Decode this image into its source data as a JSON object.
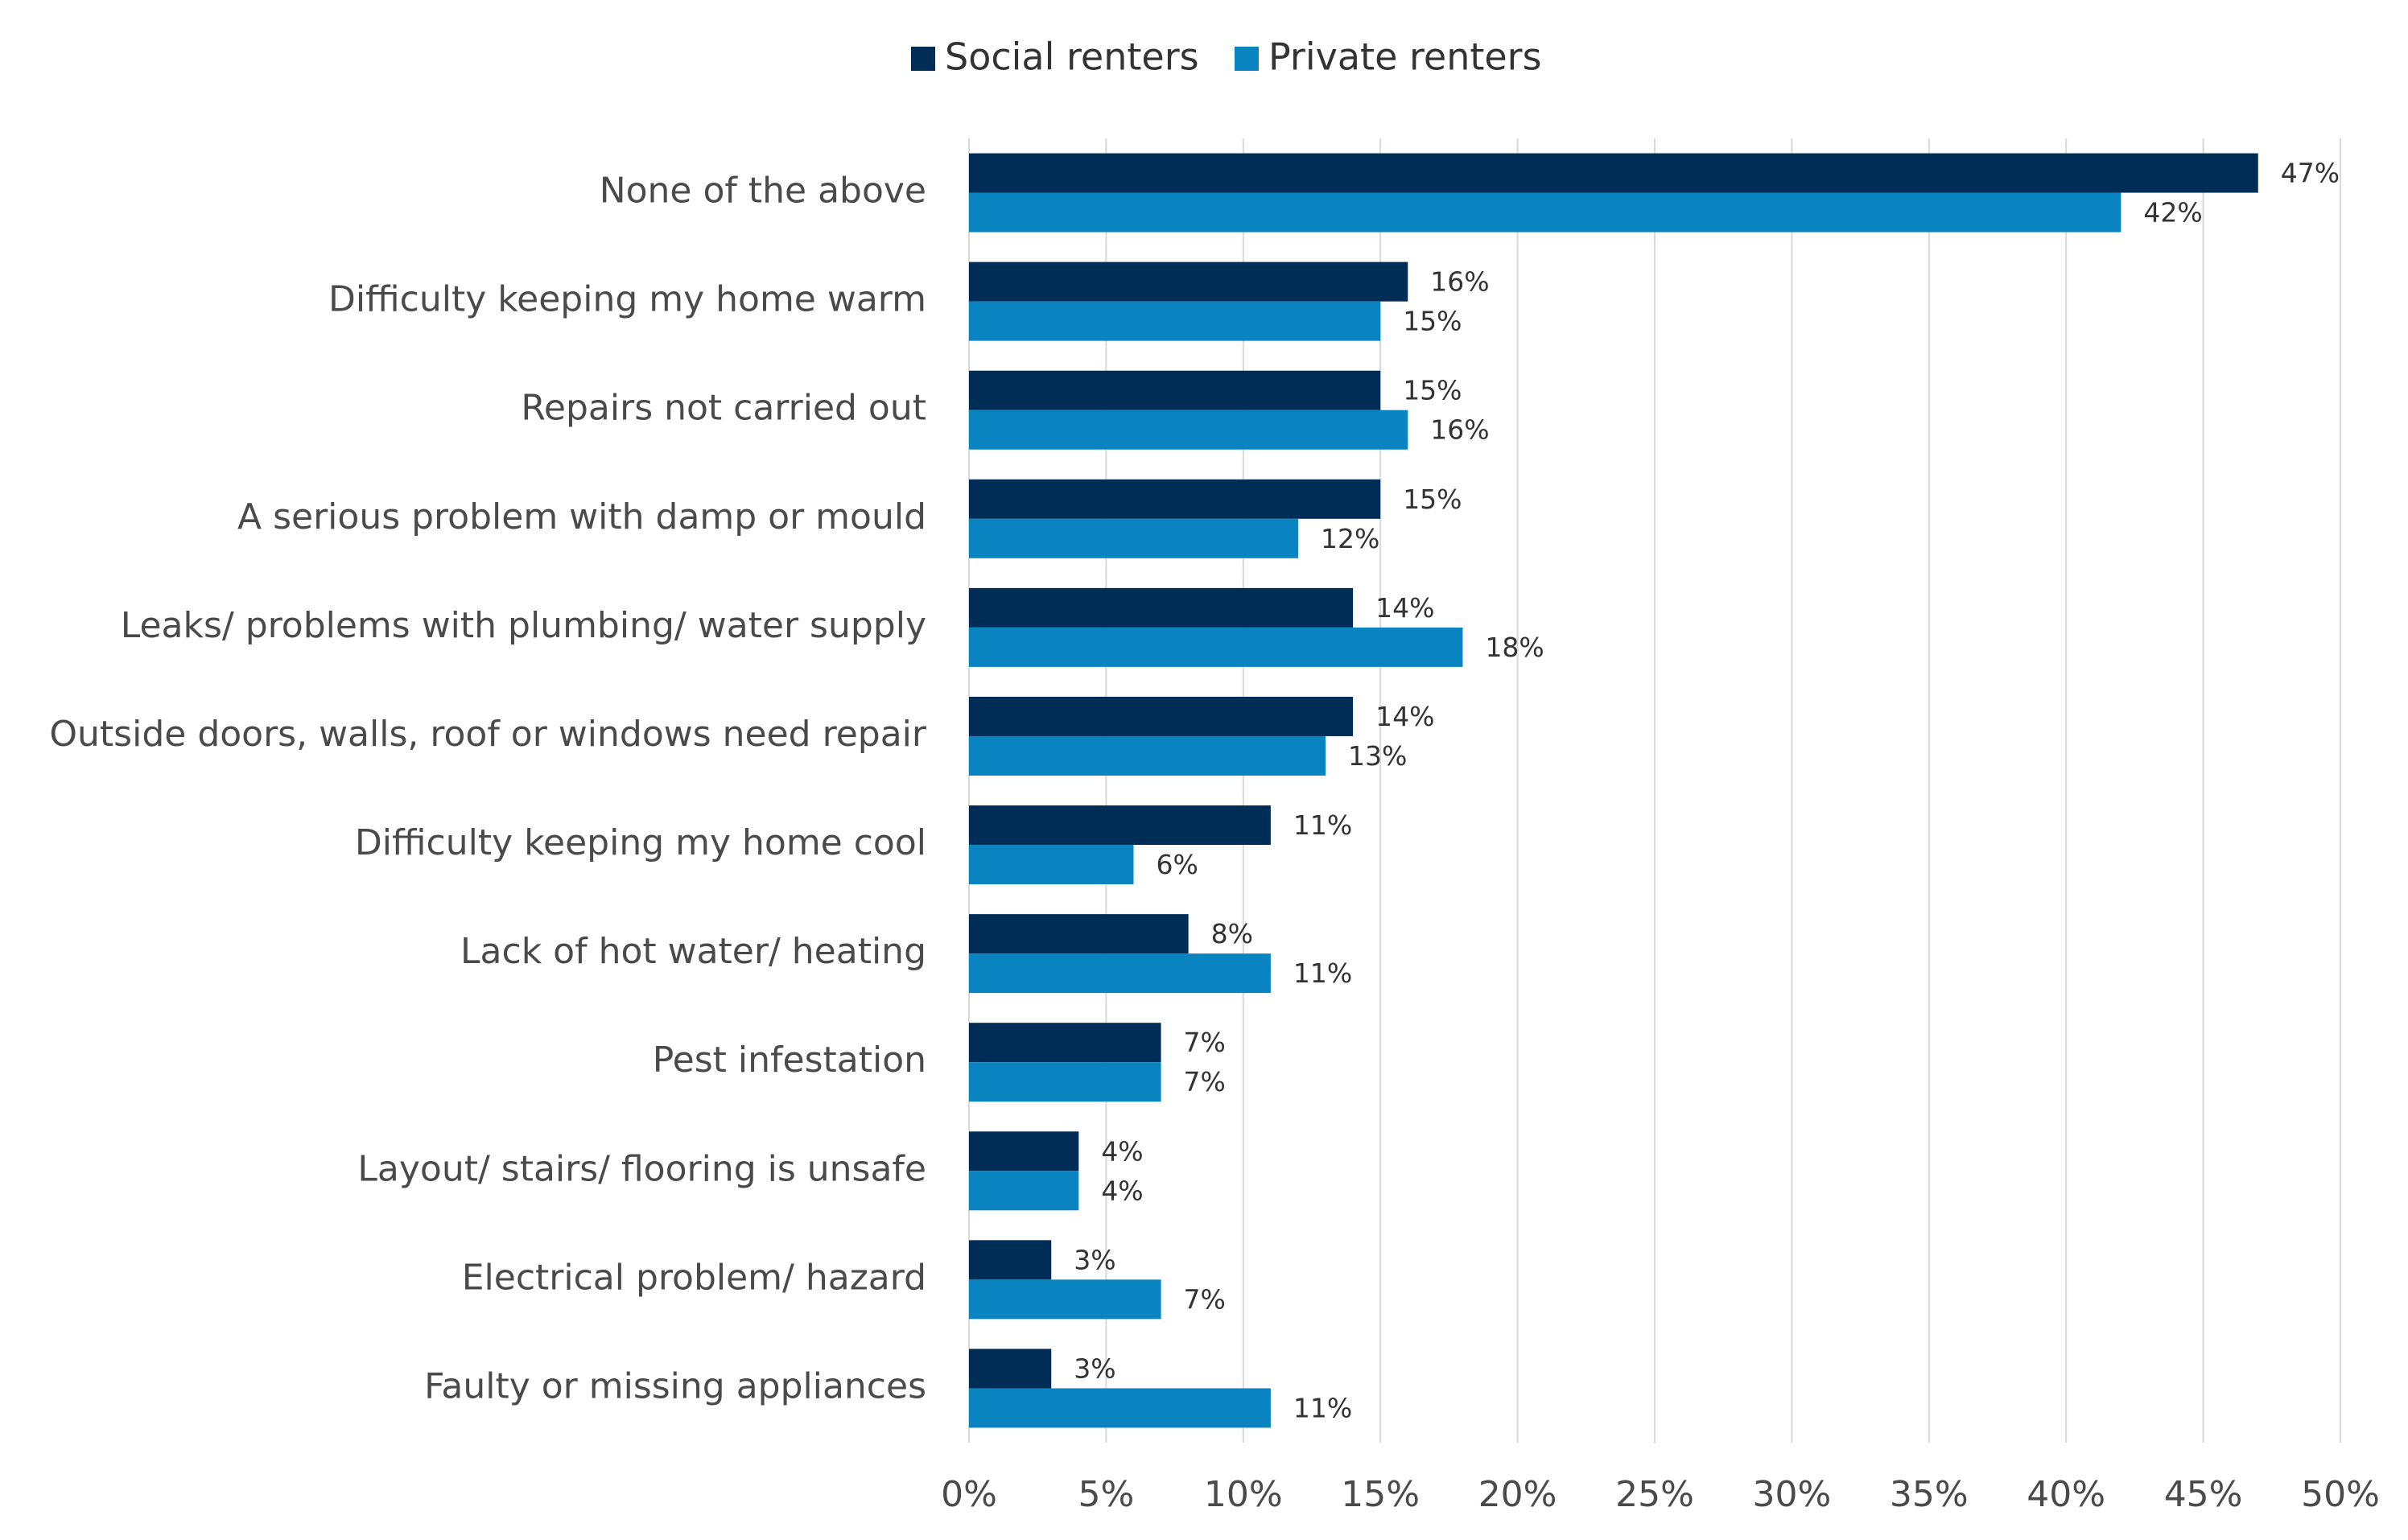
{
  "chart_data": {
    "type": "bar",
    "orientation": "horizontal",
    "categories": [
      "None of the above",
      "Difficulty keeping my home warm",
      "Repairs not carried out",
      "A serious problem with damp or mould",
      "Leaks/ problems with plumbing/ water supply",
      "Outside doors, walls, roof or windows need repair",
      "Difficulty keeping my home cool",
      "Lack of hot water/ heating",
      "Pest infestation",
      "Layout/ stairs/ flooring is unsafe",
      "Electrical problem/ hazard",
      "Faulty or missing appliances"
    ],
    "series": [
      {
        "name": "Social renters",
        "color": "#002d56",
        "values": [
          47,
          16,
          15,
          15,
          14,
          14,
          11,
          8,
          7,
          4,
          3,
          3
        ],
        "value_labels": [
          "47%",
          "16%",
          "15%",
          "15%",
          "14%",
          "14%",
          "11%",
          "8%",
          "7%",
          "4%",
          "3%",
          "3%"
        ]
      },
      {
        "name": "Private renters",
        "color": "#0a84c1",
        "values": [
          42,
          15,
          16,
          12,
          18,
          13,
          6,
          11,
          7,
          4,
          7,
          11
        ],
        "value_labels": [
          "42%",
          "15%",
          "16%",
          "12%",
          "18%",
          "13%",
          "6%",
          "11%",
          "7%",
          "4%",
          "7%",
          "11%"
        ]
      }
    ],
    "xlim": [
      0,
      50
    ],
    "xticks": [
      {
        "value": 0,
        "label": "0%"
      },
      {
        "value": 5,
        "label": "5%"
      },
      {
        "value": 10,
        "label": "10%"
      },
      {
        "value": 15,
        "label": "15%"
      },
      {
        "value": 20,
        "label": "20%"
      },
      {
        "value": 25,
        "label": "25%"
      },
      {
        "value": 30,
        "label": "30%"
      },
      {
        "value": 35,
        "label": "35%"
      },
      {
        "value": 40,
        "label": "40%"
      },
      {
        "value": 45,
        "label": "45%"
      },
      {
        "value": 50,
        "label": "50%"
      }
    ],
    "grid": true,
    "legend": "top"
  }
}
